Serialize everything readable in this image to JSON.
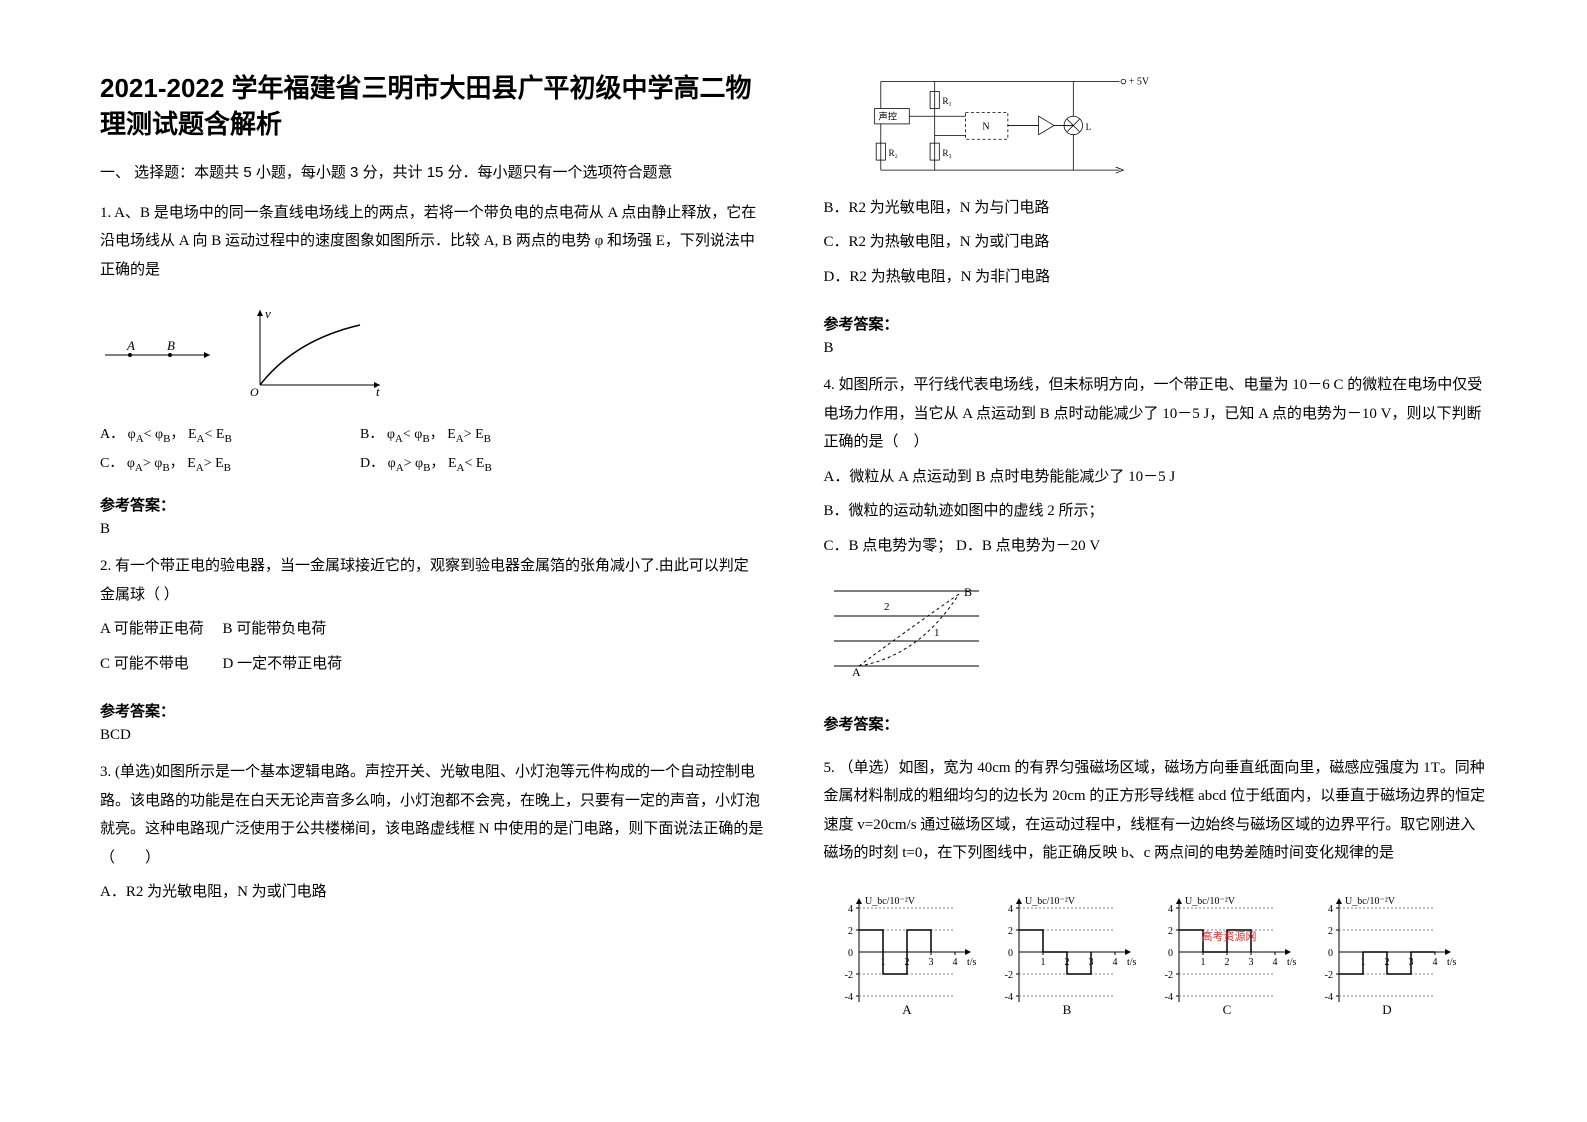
{
  "title": "2021-2022 学年福建省三明市大田县广平初级中学高二物理测试题含解析",
  "section1": "一、 选择题：本题共 5 小题，每小题 3 分，共计 15 分．每小题只有一个选项符合题意",
  "q1": {
    "stem": "1. A、B 是电场中的同一条直线电场线上的两点，若将一个带负电的点电荷从 A 点由静止释放，它在沿电场线从 A 向 B 运动过程中的速度图象如图所示．比较 A, B 两点的电势 φ 和场强 E，下列说法中正确的是",
    "optA": "A．  φ",
    "optA2": "< φ",
    "optA3": "， E",
    "optA4": "< E",
    "optB": "B．  φ",
    "optB2": "< φ",
    "optB3": "， E",
    "optB4": "> E",
    "optC": "C．  φ",
    "optC2": "> φ",
    "optC3": "， E",
    "optC4": "> E",
    "optD": "D．  φ",
    "optD2": "> φ",
    "optD3": "， E",
    "optD4": "< E",
    "subA": "A",
    "subB": "B",
    "ansLabel": "参考答案：",
    "ans": "B",
    "fig": {
      "arrow_label_A": "A",
      "arrow_label_B": "B",
      "y_label": "v",
      "x_label": "t",
      "origin": "O",
      "colors": {
        "stroke": "#000000",
        "bg": "#ffffff"
      }
    }
  },
  "q2": {
    "stem": "2. 有一个带正电的验电器，当一金属球接近它的，观察到验电器金属箔的张角减小了.由此可以判定金属球（  ）",
    "optA": "A  可能带正电荷",
    "optB": "B  可能带负电荷",
    "optC": "C  可能不带电",
    "optD": "D  一定不带正电荷",
    "ansLabel": "参考答案：",
    "ans": "BCD"
  },
  "q3": {
    "stem": "3. (单选)如图所示是一个基本逻辑电路。声控开关、光敏电阻、小灯泡等元件构成的一个自动控制电路。该电路的功能是在白天无论声音多么响，小灯泡都不会亮，在晚上，只要有一定的声音，小灯泡就亮。这种电路现广泛使用于公共楼梯间，该电路虚线框 N 中使用的是门电路，则下面说法正确的是（　　）",
    "optA": "A．R2 为光敏电阻，N 为或门电路",
    "optB": "B．R2 为光敏电阻，N 为与门电路",
    "optC": "C．R2 为热敏电阻，N 为或门电路",
    "optD": "D．R2 为热敏电阻，N 为非门电路",
    "ansLabel": "参考答案：",
    "ans": "B",
    "fig": {
      "labels": {
        "v": "+ 5V",
        "sound": "声控",
        "R1": "R₁",
        "R2": "R₂",
        "R3": "R₃",
        "N": "N",
        "lamp": "L"
      },
      "colors": {
        "stroke": "#000000",
        "dash": "#000000"
      }
    }
  },
  "q4": {
    "stem": "4. 如图所示，平行线代表电场线，但未标明方向，一个带正电、电量为 10－6 C 的微粒在电场中仅受电场力作用，当它从 A 点运动到 B 点时动能减少了 10－5 J，已知 A 点的电势为－10 V，则以下判断正确的是（　）",
    "optA": "A．微粒从 A 点运动到 B 点时电势能能减少了 10－5 J",
    "optB": "B．微粒的运动轨迹如图中的虚线 2 所示；",
    "optC": "C．B 点电势为零；",
    "optD": "D．B 点电势为－20 V",
    "ansLabel": "参考答案：",
    "ans": "",
    "fig": {
      "labels": {
        "A": "A",
        "B": "B",
        "n1": "1",
        "n2": "2"
      },
      "colors": {
        "stroke": "#000000"
      }
    }
  },
  "q5": {
    "stem": "5. （单选）如图，宽为 40cm 的有界匀强磁场区域，磁场方向垂直纸面向里，磁感应强度为 1T。同种金属材料制成的粗细均匀的边长为 20cm 的正方形导线框 abcd 位于纸面内，以垂直于磁场边界的恒定速度 v=20cm/s 通过磁场区域，在运动过程中，线框有一边始终与磁场区域的边界平行。取它刚进入磁场的时刻 t=0，在下列图线中，能正确反映 b、c 两点间的电势差随时间变化规律的是",
    "marker": "w",
    "fig": {
      "ylabel": "U_bc/10⁻²V",
      "xlabel": "t/s",
      "panels": [
        "A",
        "B",
        "C",
        "D"
      ],
      "ylim": [
        -4,
        4
      ],
      "yticks": [
        -4,
        -2,
        0,
        2,
        4
      ],
      "xlim": [
        0,
        4
      ],
      "xticks": [
        0,
        1,
        2,
        3,
        4
      ],
      "colors": {
        "axis": "#000000",
        "line": "#000000",
        "dash": "#808080",
        "watermark": "#d93030"
      },
      "watermark": "高考资源网",
      "series": {
        "A": [
          [
            0,
            2
          ],
          [
            1,
            2
          ],
          [
            1,
            -2
          ],
          [
            2,
            -2
          ],
          [
            2,
            2
          ],
          [
            3,
            2
          ],
          [
            3,
            0
          ]
        ],
        "B": [
          [
            0,
            2
          ],
          [
            1,
            2
          ],
          [
            1,
            0
          ],
          [
            2,
            0
          ],
          [
            2,
            -2
          ],
          [
            3,
            -2
          ],
          [
            3,
            0
          ]
        ],
        "C": [
          [
            0,
            2
          ],
          [
            1,
            2
          ],
          [
            1,
            0
          ],
          [
            2,
            0
          ],
          [
            2,
            2
          ],
          [
            3,
            2
          ],
          [
            3,
            0
          ]
        ],
        "D": [
          [
            0,
            -2
          ],
          [
            1,
            -2
          ],
          [
            1,
            0
          ],
          [
            2,
            0
          ],
          [
            2,
            -2
          ],
          [
            3,
            -2
          ],
          [
            3,
            0
          ],
          [
            4,
            0
          ]
        ]
      }
    }
  }
}
